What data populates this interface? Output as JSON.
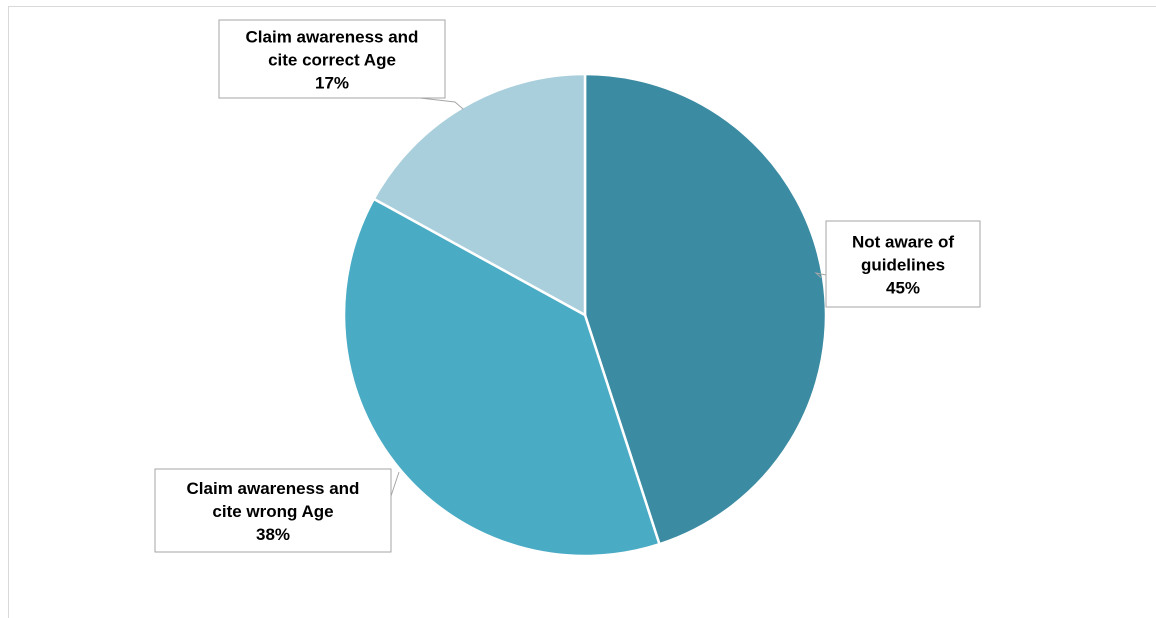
{
  "chart_data": {
    "type": "pie",
    "title": "",
    "slices": [
      {
        "label_lines": [
          "Not aware of",
          "guidelines"
        ],
        "value": 45,
        "value_label": "45%",
        "color": "#3b8ba2"
      },
      {
        "label_lines": [
          "Claim awareness and",
          "cite wrong Age"
        ],
        "value": 38,
        "value_label": "38%",
        "color": "#4aabc5"
      },
      {
        "label_lines": [
          "Claim awareness and",
          "cite correct Age"
        ],
        "value": 17,
        "value_label": "17%",
        "color": "#a9cfdc"
      }
    ],
    "start_angle_deg": 0,
    "direction": "clockwise",
    "legend": "none",
    "slice_border_color": "#ffffff",
    "label_border_color": "#a6a6a6"
  }
}
